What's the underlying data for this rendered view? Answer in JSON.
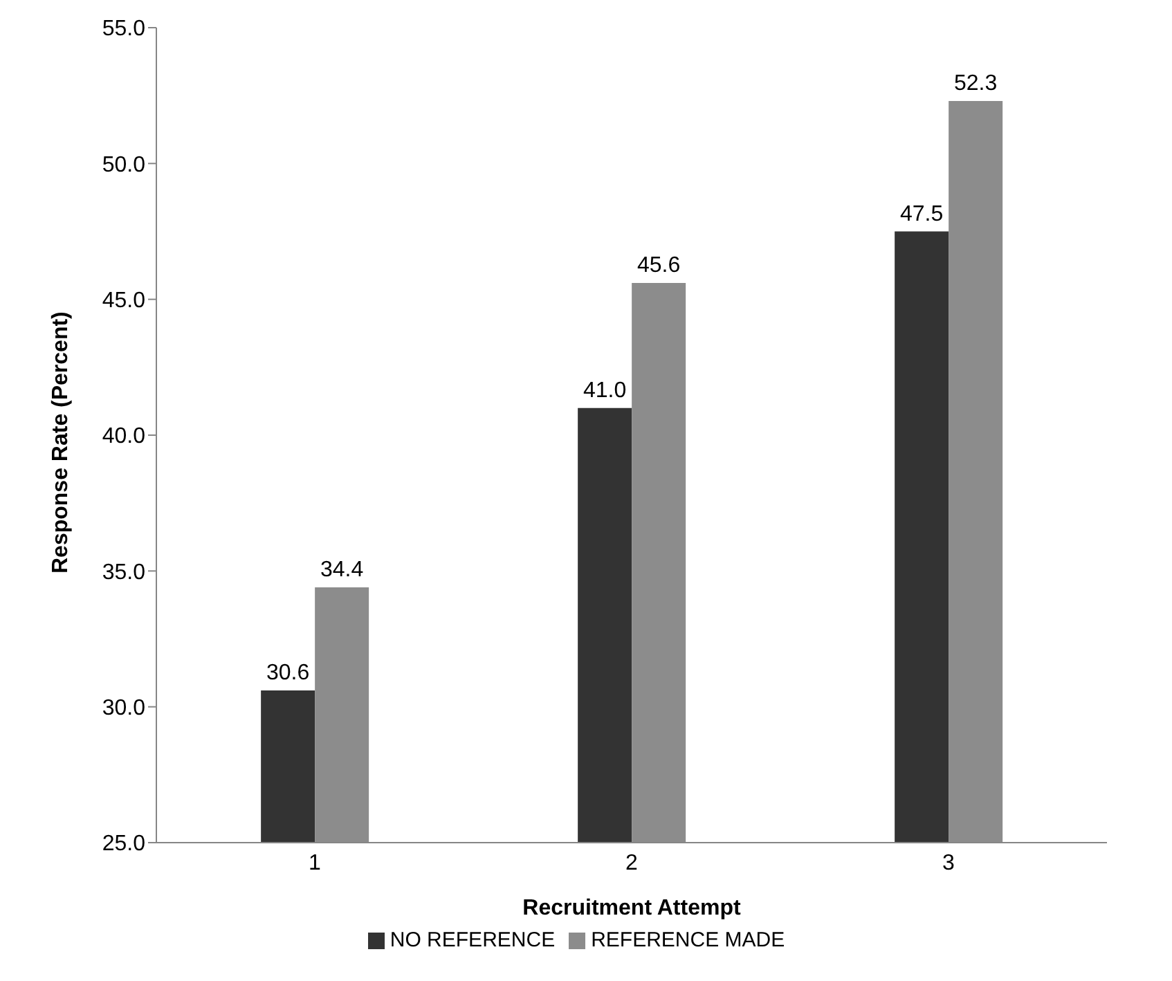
{
  "chart_data": {
    "type": "bar",
    "xlabel": "Recruitment Attempt",
    "ylabel": "Response Rate (Percent)",
    "categories": [
      "1",
      "2",
      "3"
    ],
    "series": [
      {
        "name": "NO REFERENCE",
        "color": "#333333",
        "values": [
          30.6,
          41.0,
          47.5
        ],
        "value_labels": [
          "30.6",
          "41.0",
          "47.5"
        ]
      },
      {
        "name": "REFERENCE MADE",
        "color": "#8c8c8c",
        "values": [
          34.4,
          45.6,
          52.3
        ],
        "value_labels": [
          "34.4",
          "45.6",
          "52.3"
        ]
      }
    ],
    "ylim": [
      25,
      55
    ],
    "yticks": [
      {
        "value": 25,
        "label": "25.0"
      },
      {
        "value": 30,
        "label": "30.0"
      },
      {
        "value": 35,
        "label": "35.0"
      },
      {
        "value": 40,
        "label": "40.0"
      },
      {
        "value": 45,
        "label": "45.0"
      },
      {
        "value": 50,
        "label": "50.0"
      },
      {
        "value": 55,
        "label": "55.0"
      }
    ],
    "grid": false,
    "legend": "bottom"
  }
}
